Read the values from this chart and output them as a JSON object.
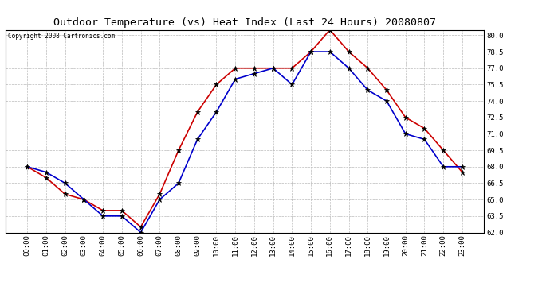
{
  "title": "Outdoor Temperature (vs) Heat Index (Last 24 Hours) 20080807",
  "copyright_text": "Copyright 2008 Cartronics.com",
  "x_labels": [
    "00:00",
    "01:00",
    "02:00",
    "03:00",
    "04:00",
    "05:00",
    "06:00",
    "07:00",
    "08:00",
    "09:00",
    "10:00",
    "11:00",
    "12:00",
    "13:00",
    "14:00",
    "15:00",
    "16:00",
    "17:00",
    "18:00",
    "19:00",
    "20:00",
    "21:00",
    "22:00",
    "23:00"
  ],
  "temp_data": [
    68.0,
    67.5,
    66.5,
    65.0,
    63.5,
    63.5,
    62.0,
    65.0,
    66.5,
    70.5,
    73.0,
    76.0,
    76.5,
    77.0,
    75.5,
    78.5,
    78.5,
    77.0,
    75.0,
    74.0,
    71.0,
    70.5,
    68.0,
    68.0
  ],
  "heat_index_data": [
    68.0,
    67.0,
    65.5,
    65.0,
    64.0,
    64.0,
    62.5,
    65.5,
    69.5,
    73.0,
    75.5,
    77.0,
    77.0,
    77.0,
    77.0,
    78.5,
    80.5,
    78.5,
    77.0,
    75.0,
    72.5,
    71.5,
    69.5,
    67.5
  ],
  "ylim": [
    62.0,
    80.5
  ],
  "yticks": [
    62.0,
    63.5,
    65.0,
    66.5,
    68.0,
    69.5,
    71.0,
    72.5,
    74.0,
    75.5,
    77.0,
    78.5,
    80.0
  ],
  "bg_color": "#ffffff",
  "plot_bg_color": "#ffffff",
  "grid_color": "#bbbbbb",
  "temp_color": "#0000cc",
  "heat_color": "#cc0000",
  "title_fontsize": 9.5,
  "tick_fontsize": 6.5,
  "copyright_fontsize": 5.5
}
